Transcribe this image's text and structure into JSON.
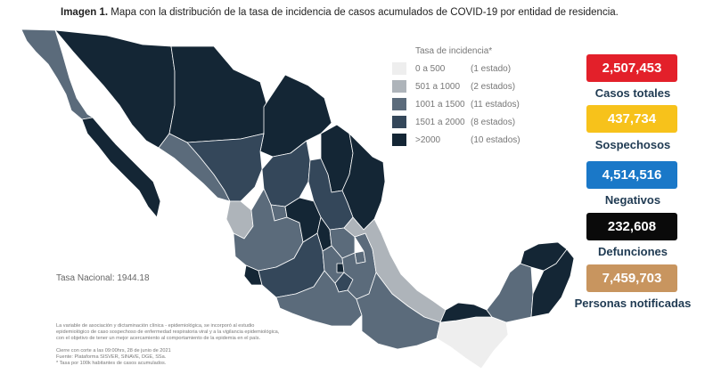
{
  "header": {
    "title_bold": "Imagen 1.",
    "title_rest": " Mapa con la distribución de la tasa de incidencia de casos acumulados de COVID-19 por entidad de residencia."
  },
  "legend": {
    "title": "Tasa de incidencia*",
    "items": [
      {
        "range": "0 a   500",
        "count": "(1 estado)",
        "color": "#eeeeee"
      },
      {
        "range": "501 a  1000",
        "count": "(2 estados)",
        "color": "#aeb4ba"
      },
      {
        "range": "1001 a  1500",
        "count": "(11 estados)",
        "color": "#5b6b7b"
      },
      {
        "range": "1501 a  2000",
        "count": "(8 estados)",
        "color": "#34475a"
      },
      {
        "range": ">2000",
        "count": "(10 estados)",
        "color": "#142635"
      }
    ]
  },
  "tasa_nacional": "Tasa Nacional: 1944.18",
  "notes": [
    "La variable de asociación y dictaminación clínica - epidemiológica, se incorporó al estudio",
    "epidemiológico de caso sospechoso de enfermedad respiratoria viral y a la vigilancia epidemiológica,",
    "con el objetivo de tener un mejor acercamiento al comportamiento de la epidemia en el país.",
    "",
    "Cierre con corte a las 09:00hrs, 28 de junio de 2021",
    "Fuente: Plataforma SISVER, SINAVE, DGE, SSa.",
    "* Tasa por 100k habitantes de casos acumulados."
  ],
  "stats": [
    {
      "value": "2,507,453",
      "label": "Casos totales",
      "color": "#e3202a"
    },
    {
      "value": "437,734",
      "label": "Sospechosos",
      "color": "#f7c21b"
    },
    {
      "value": "4,514,516",
      "label": "Negativos",
      "color": "#1a78c8"
    },
    {
      "value": "232,608",
      "label": "Defunciones",
      "color": "#0a0a0a"
    },
    {
      "value": "7,459,703",
      "label": "Personas notificadas",
      "color": "#c8955f"
    }
  ],
  "map_colors": {
    "darkest": "#142635",
    "dark": "#34475a",
    "medium": "#5b6b7b",
    "light": "#aeb4ba",
    "lightest": "#eeeeee",
    "border": "#ffffff"
  }
}
